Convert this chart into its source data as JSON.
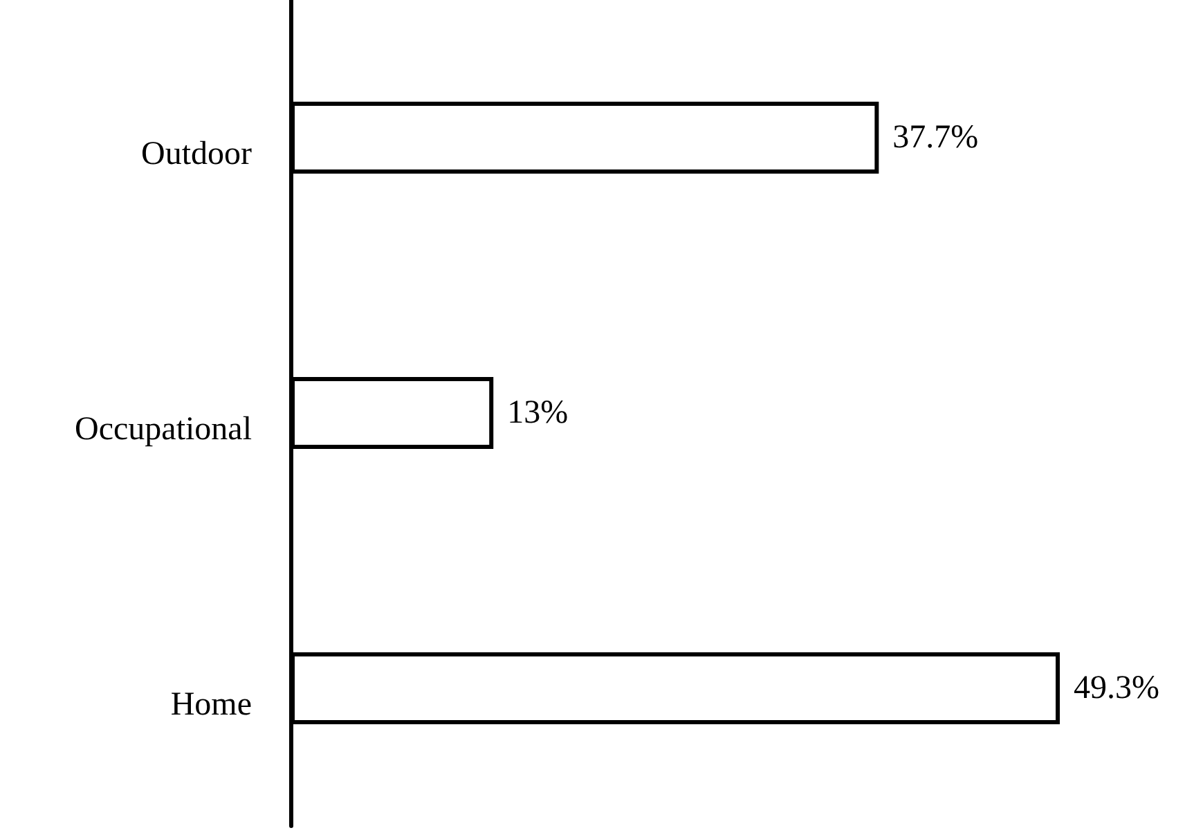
{
  "chart_data": {
    "type": "bar",
    "orientation": "horizontal",
    "categories": [
      "Outdoor",
      "Occupational",
      "Home"
    ],
    "values": [
      37.7,
      13,
      49.3
    ],
    "value_labels": [
      "37.7%",
      "13%",
      "49.3%"
    ],
    "color": "#ffffff"
  }
}
